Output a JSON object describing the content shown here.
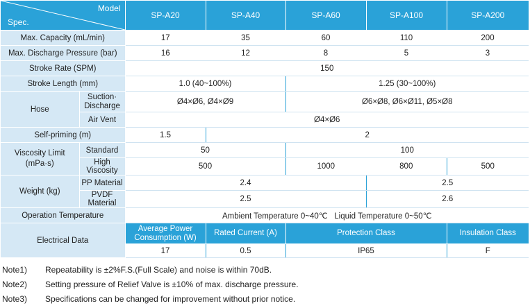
{
  "header": {
    "model_label": "Model",
    "spec_label": "Spec.",
    "models": [
      "SP-A20",
      "SP-A40",
      "SP-A60",
      "SP-A100",
      "SP-A200"
    ]
  },
  "rows": {
    "max_capacity": {
      "label": "Max. Capacity (mL/min)",
      "values": [
        "17",
        "35",
        "60",
        "110",
        "200"
      ]
    },
    "max_pressure": {
      "label": "Max. Discharge Pressure (bar)",
      "values": [
        "16",
        "12",
        "8",
        "5",
        "3"
      ]
    },
    "stroke_rate": {
      "label": "Stroke Rate (SPM)",
      "value": "150"
    },
    "stroke_length": {
      "label": "Stroke Length (mm)",
      "values": [
        "1.0 (40~100%)",
        "1.25 (30~100%)"
      ]
    },
    "hose": {
      "label": "Hose",
      "suction_label": "Suction·\nDischarge",
      "suction_values": [
        "Ø4×Ø6, Ø4×Ø9",
        "Ø6×Ø8, Ø6×Ø11, Ø5×Ø8"
      ],
      "air_vent_label": "Air Vent",
      "air_vent_value": "Ø4×Ø6"
    },
    "self_priming": {
      "label": "Self-priming (m)",
      "values": [
        "1.5",
        "2"
      ]
    },
    "viscosity": {
      "label": "Viscosity Limit\n(mPa·s)",
      "standard_label": "Standard",
      "standard_values": [
        "50",
        "100"
      ],
      "high_label": "High Viscosity",
      "high_values": [
        "500",
        "1000",
        "800",
        "500"
      ]
    },
    "weight": {
      "label": "Weight (kg)",
      "pp_label": "PP Material",
      "pp_values": [
        "2.4",
        "2.5"
      ],
      "pvdf_label": "PVDF Material",
      "pvdf_values": [
        "2.5",
        "2.6"
      ]
    },
    "operation_temp": {
      "label": "Operation Temperature",
      "value": "Ambient Temperature 0~40℃   Liquid Temperature 0~50℃"
    },
    "electrical": {
      "label": "Electrical Data",
      "headers": [
        "Average Power\nConsumption (W)",
        "Rated Current (A)",
        "Protection Class",
        "Insulation Class"
      ],
      "values": [
        "17",
        "0.5",
        "IP65",
        "F"
      ]
    }
  },
  "notes": [
    {
      "label": "Note1)",
      "text": "Repeatability is ±2%F.S.(Full Scale) and noise is within 70dB."
    },
    {
      "label": "Note2)",
      "text": "Setting pressure of Relief Valve is ±10% of max. discharge pressure."
    },
    {
      "label": "Note3)",
      "text": "Specifications can be changed for improvement without prior notice."
    }
  ]
}
